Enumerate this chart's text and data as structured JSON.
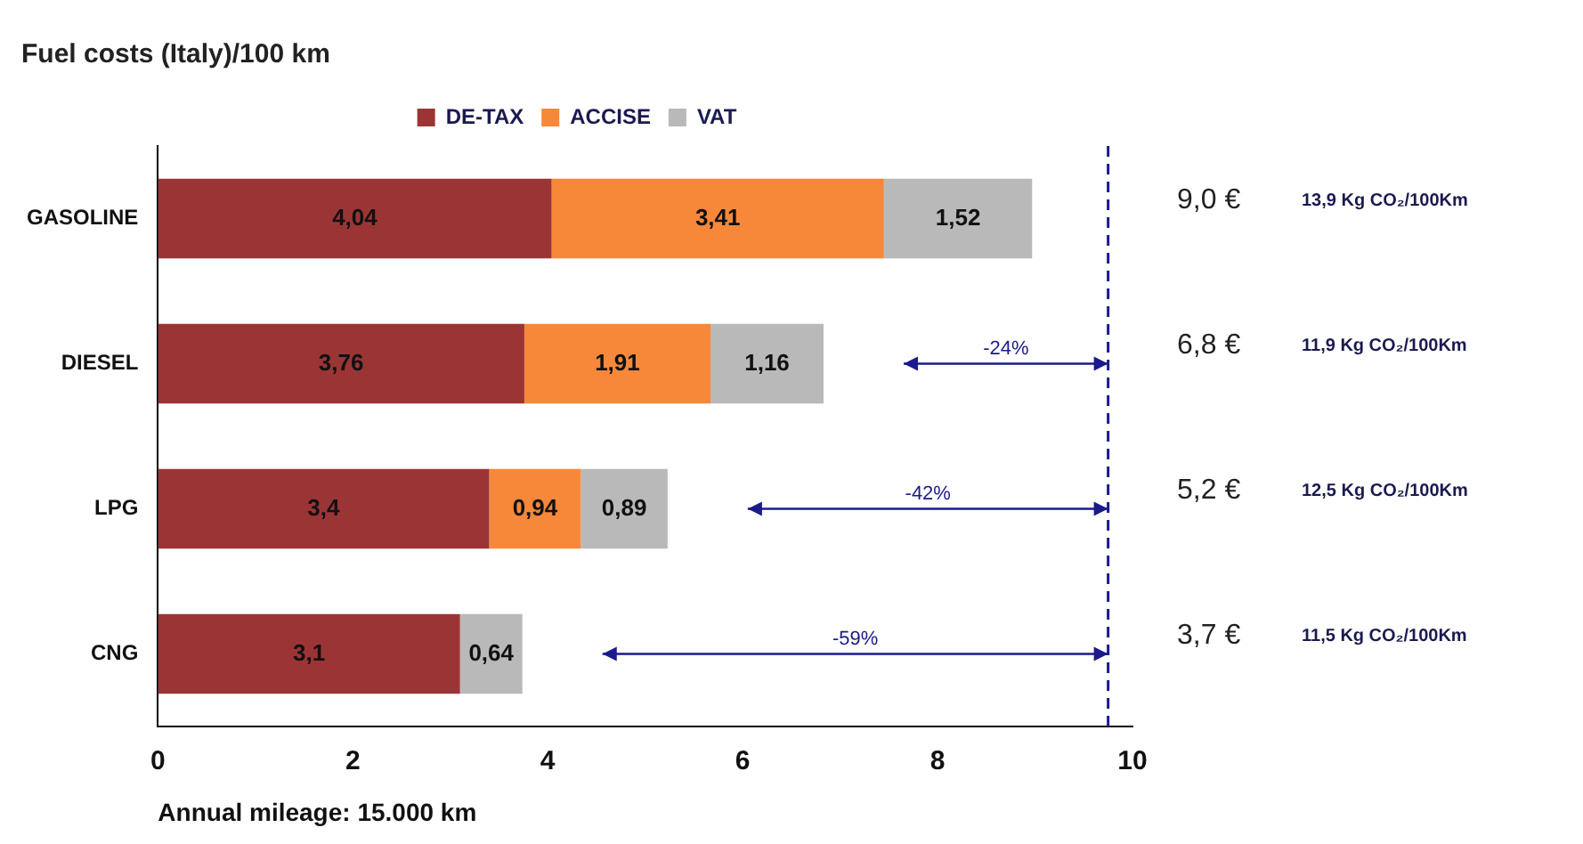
{
  "chart_data": {
    "type": "bar",
    "orientation": "horizontal",
    "stacked": true,
    "title": "Fuel costs (Italy)/100 km",
    "categories": [
      "GASOLINE",
      "DIESEL",
      "LPG",
      "CNG"
    ],
    "series": [
      {
        "name": "DE-TAX",
        "color": "#9b3535",
        "values": [
          4.04,
          3.76,
          3.4,
          3.1
        ]
      },
      {
        "name": "ACCISE",
        "color": "#f7883a",
        "values": [
          3.41,
          1.91,
          0.94,
          0
        ]
      },
      {
        "name": "VAT",
        "color": "#b9b9b9",
        "values": [
          1.52,
          1.16,
          0.89,
          0.64
        ]
      }
    ],
    "value_labels": [
      [
        "4,04",
        "3,76",
        "3,4",
        "3,1"
      ],
      [
        "3,41",
        "1,91",
        "0,94",
        null
      ],
      [
        "1,52",
        "1,16",
        "0,89",
        "0,64"
      ]
    ],
    "xlim": [
      0,
      10
    ],
    "xticks": [
      0,
      2,
      4,
      6,
      8,
      10
    ],
    "grid": false,
    "legend": "top",
    "ref_lines": [
      {
        "axis": "x",
        "value": 9.75,
        "color": "#1a1a8c",
        "line_style": "dashed"
      }
    ],
    "annotations": [
      "-24%",
      "-42%",
      "-59%",
      "9,0 €",
      "6,8 €",
      "5,2 €",
      "3,7 €",
      "13,9 Kg CO₂/100Km",
      "11,9 Kg CO₂/100Km",
      "12,5 Kg CO₂/100Km",
      "11,5 Kg CO₂/100Km",
      "Annual mileage: 15.000 km"
    ]
  }
}
